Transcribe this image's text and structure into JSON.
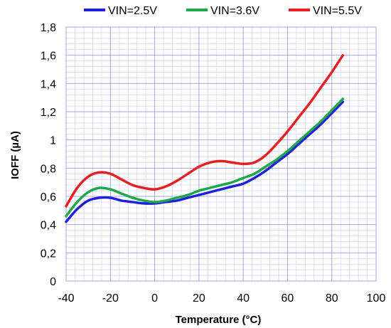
{
  "chart_data": {
    "type": "line",
    "title": "",
    "xlabel": "Temperature (°C)",
    "ylabel": "IOFF  (µA)",
    "xlim": [
      -40,
      100
    ],
    "ylim": [
      0,
      1.8
    ],
    "x_ticks": [
      "-40",
      "-20",
      "0",
      "20",
      "40",
      "60",
      "80",
      "100"
    ],
    "y_ticks": [
      "0",
      "0,2",
      "0,4",
      "0,6",
      "0,8",
      "1",
      "1,2",
      "1,4",
      "1,6",
      "1,8"
    ],
    "grid": true,
    "minor_grid": true,
    "legend_position": "top",
    "series": [
      {
        "name": "VIN=2.5V",
        "color": "#1f1fdc",
        "x": [
          -40,
          -35,
          -30,
          -25,
          -20,
          -15,
          -10,
          -5,
          0,
          5,
          10,
          15,
          20,
          25,
          30,
          35,
          40,
          45,
          50,
          55,
          60,
          65,
          70,
          75,
          80,
          85
        ],
        "y": [
          0.42,
          0.51,
          0.57,
          0.59,
          0.59,
          0.57,
          0.56,
          0.55,
          0.55,
          0.56,
          0.57,
          0.59,
          0.61,
          0.63,
          0.65,
          0.67,
          0.69,
          0.73,
          0.78,
          0.84,
          0.9,
          0.97,
          1.04,
          1.11,
          1.19,
          1.27
        ]
      },
      {
        "name": "VIN=3.6V",
        "color": "#1fa84a",
        "x": [
          -40,
          -35,
          -30,
          -25,
          -20,
          -15,
          -10,
          -5,
          0,
          5,
          10,
          15,
          20,
          25,
          30,
          35,
          40,
          45,
          50,
          55,
          60,
          65,
          70,
          75,
          80,
          85
        ],
        "y": [
          0.46,
          0.56,
          0.63,
          0.66,
          0.65,
          0.62,
          0.59,
          0.57,
          0.56,
          0.57,
          0.59,
          0.61,
          0.64,
          0.66,
          0.68,
          0.7,
          0.73,
          0.76,
          0.81,
          0.86,
          0.92,
          0.99,
          1.06,
          1.13,
          1.21,
          1.29
        ]
      },
      {
        "name": "VIN=5.5V",
        "color": "#e62020",
        "x": [
          -40,
          -35,
          -30,
          -25,
          -20,
          -15,
          -10,
          -5,
          0,
          5,
          10,
          15,
          20,
          25,
          30,
          35,
          40,
          45,
          50,
          55,
          60,
          65,
          70,
          75,
          80,
          85
        ],
        "y": [
          0.53,
          0.66,
          0.74,
          0.77,
          0.76,
          0.72,
          0.68,
          0.66,
          0.65,
          0.67,
          0.71,
          0.76,
          0.81,
          0.84,
          0.85,
          0.84,
          0.83,
          0.84,
          0.89,
          0.97,
          1.06,
          1.16,
          1.26,
          1.37,
          1.48,
          1.6
        ]
      }
    ]
  }
}
